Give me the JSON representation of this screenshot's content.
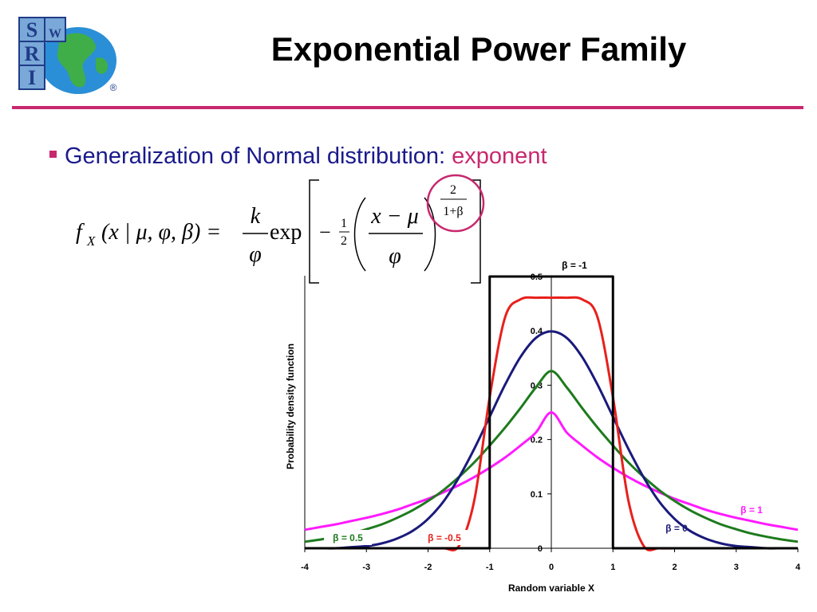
{
  "logo": {
    "letters": [
      "S",
      "W",
      "R",
      "I"
    ],
    "registered": "®"
  },
  "slide_title": "Exponential Power Family",
  "bullet": {
    "text": "Generalization of Normal distribution: ",
    "highlight": "exponent"
  },
  "formula": {
    "lhs": "f",
    "lhs_sub": "X",
    "lhs_args": "(x | μ, φ, β) =",
    "frac_num": "k",
    "frac_den": "φ",
    "func": "exp",
    "minus": "−",
    "half_num": "1",
    "half_den": "2",
    "inner_num": "x − μ",
    "inner_den": "φ",
    "exp_num": "2",
    "exp_den": "1+β"
  },
  "colors": {
    "accent": "#c8286e",
    "bullet_text": "#1a1a8c",
    "beta_neg1": "#000000",
    "beta_neg05": "#e8201c",
    "beta_0": "#1a1a7c",
    "beta_05": "#1e7a1e",
    "beta_1": "#ff1aff"
  },
  "chart_data": {
    "type": "line",
    "xlabel": "Random variable X",
    "ylabel": "Probability density function",
    "xlim": [
      -4,
      4
    ],
    "ylim": [
      0,
      0.5
    ],
    "x_ticks": [
      "-4",
      "-3",
      "-2",
      "-1",
      "0",
      "1",
      "2",
      "3",
      "4"
    ],
    "y_ticks": [
      "0",
      "0.1",
      "0.2",
      "0.3",
      "0.4",
      "0.5"
    ],
    "grid": false,
    "x": [
      -4,
      -3.75,
      -3.5,
      -3.25,
      -3,
      -2.75,
      -2.5,
      -2.25,
      -2,
      -1.75,
      -1.5,
      -1.25,
      -1,
      -0.75,
      -0.5,
      -0.25,
      0,
      0.25,
      0.5,
      0.75,
      1,
      1.25,
      1.5,
      1.75,
      2,
      2.25,
      2.5,
      2.75,
      3,
      3.25,
      3.5,
      3.75,
      4
    ],
    "series": [
      {
        "name": "β = -1",
        "label": "β = -1",
        "color_key": "beta_neg1",
        "values": [
          0,
          0,
          0,
          0,
          0,
          0,
          0,
          0,
          0,
          0,
          0,
          0,
          0.5,
          0.5,
          0.5,
          0.5,
          0.5,
          0.5,
          0.5,
          0.5,
          0.5,
          0,
          0,
          0,
          0,
          0,
          0,
          0,
          0,
          0,
          0,
          0,
          0
        ]
      },
      {
        "name": "β = -0.5",
        "label": "β = -0.5",
        "color_key": "beta_neg05",
        "values": [
          0,
          0,
          0,
          0,
          0,
          0,
          0,
          0,
          0,
          0,
          0.004,
          0.088,
          0.278,
          0.425,
          0.458,
          0.461,
          0.461,
          0.461,
          0.458,
          0.425,
          0.278,
          0.088,
          0.004,
          0,
          0,
          0,
          0,
          0,
          0,
          0,
          0,
          0,
          0
        ]
      },
      {
        "name": "β = 0",
        "label": "β = 0",
        "color_key": "beta_0",
        "values": [
          0,
          0,
          0,
          0.002,
          0.004,
          0.009,
          0.018,
          0.032,
          0.054,
          0.086,
          0.13,
          0.183,
          0.242,
          0.301,
          0.352,
          0.387,
          0.399,
          0.387,
          0.352,
          0.301,
          0.242,
          0.183,
          0.13,
          0.086,
          0.054,
          0.032,
          0.018,
          0.009,
          0.004,
          0.002,
          0,
          0,
          0
        ]
      },
      {
        "name": "β = 0.5",
        "label": "β = 0.5",
        "color_key": "beta_05",
        "values": [
          0.012,
          0.016,
          0.021,
          0.027,
          0.035,
          0.044,
          0.056,
          0.07,
          0.087,
          0.107,
          0.131,
          0.158,
          0.189,
          0.222,
          0.258,
          0.296,
          0.326,
          0.296,
          0.258,
          0.222,
          0.189,
          0.158,
          0.131,
          0.107,
          0.087,
          0.07,
          0.056,
          0.044,
          0.035,
          0.027,
          0.021,
          0.016,
          0.012
        ]
      },
      {
        "name": "β = 1",
        "label": "β = 1",
        "color_key": "beta_1",
        "values": [
          0.034,
          0.039,
          0.044,
          0.05,
          0.056,
          0.063,
          0.071,
          0.081,
          0.091,
          0.103,
          0.116,
          0.131,
          0.148,
          0.167,
          0.189,
          0.213,
          0.25,
          0.213,
          0.189,
          0.167,
          0.148,
          0.131,
          0.116,
          0.103,
          0.091,
          0.081,
          0.071,
          0.063,
          0.056,
          0.05,
          0.044,
          0.039,
          0.034
        ]
      }
    ]
  }
}
